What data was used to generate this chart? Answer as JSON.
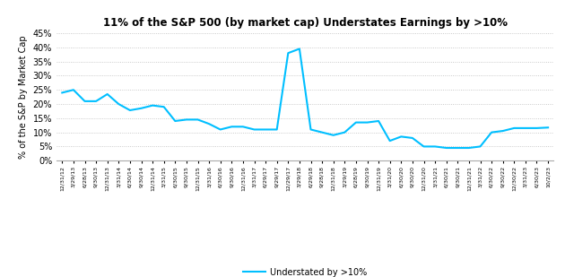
{
  "title": "11% of the S&P 500 (by market cap) Understates Earnings by >10%",
  "ylabel": "% of the S&P by Market Cap",
  "legend_label": "Understated by >10%",
  "line_color": "#00BFFF",
  "background_color": "#FFFFFF",
  "ylim": [
    0,
    0.45
  ],
  "yticks": [
    0.0,
    0.05,
    0.1,
    0.15,
    0.2,
    0.25,
    0.3,
    0.35,
    0.4,
    0.45
  ],
  "x_labels": [
    "12/31/12",
    "3/29/13",
    "6/28/13",
    "9/30/13",
    "12/31/13",
    "3/31/14",
    "6/30/14",
    "9/30/14",
    "12/31/14",
    "3/31/15",
    "6/30/15",
    "9/30/15",
    "12/31/15",
    "3/31/16",
    "6/30/16",
    "9/30/16",
    "12/31/16",
    "3/31/17",
    "6/29/17",
    "9/29/17",
    "12/29/17",
    "3/29/18",
    "6/29/18",
    "9/28/18",
    "12/31/18",
    "3/29/19",
    "6/28/19",
    "9/30/19",
    "12/31/19",
    "3/31/20",
    "6/30/20",
    "9/30/20",
    "12/31/20",
    "3/31/21",
    "6/30/21",
    "9/30/21",
    "12/31/21",
    "3/31/22",
    "6/30/22",
    "9/30/22",
    "12/30/22",
    "3/31/23",
    "6/30/23",
    "10/2/23"
  ],
  "values": [
    0.24,
    0.25,
    0.21,
    0.21,
    0.235,
    0.2,
    0.178,
    0.185,
    0.195,
    0.19,
    0.14,
    0.145,
    0.145,
    0.13,
    0.11,
    0.12,
    0.12,
    0.11,
    0.11,
    0.11,
    0.38,
    0.395,
    0.11,
    0.1,
    0.09,
    0.1,
    0.135,
    0.135,
    0.14,
    0.07,
    0.085,
    0.08,
    0.05,
    0.05,
    0.045,
    0.045,
    0.045,
    0.05,
    0.1,
    0.105,
    0.115,
    0.115,
    0.115,
    0.117
  ]
}
